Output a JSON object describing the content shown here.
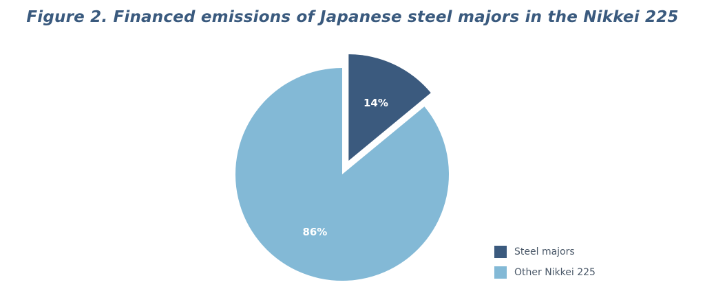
{
  "chart_data": {
    "type": "pie",
    "title": "Figure 2. Financed emissions of Japanese steel majors in the Nikkei 225",
    "slices": [
      {
        "name": "Steel majors",
        "value": 14,
        "label": "14%",
        "color": "#3b5a7e",
        "exploded": true
      },
      {
        "name": "Other Nikkei 225",
        "value": 86,
        "label": "86%",
        "color": "#83b9d6",
        "exploded": false
      }
    ],
    "legend": {
      "placement": "bottom-right",
      "items": [
        "Steel majors",
        "Other Nikkei 225"
      ]
    }
  }
}
